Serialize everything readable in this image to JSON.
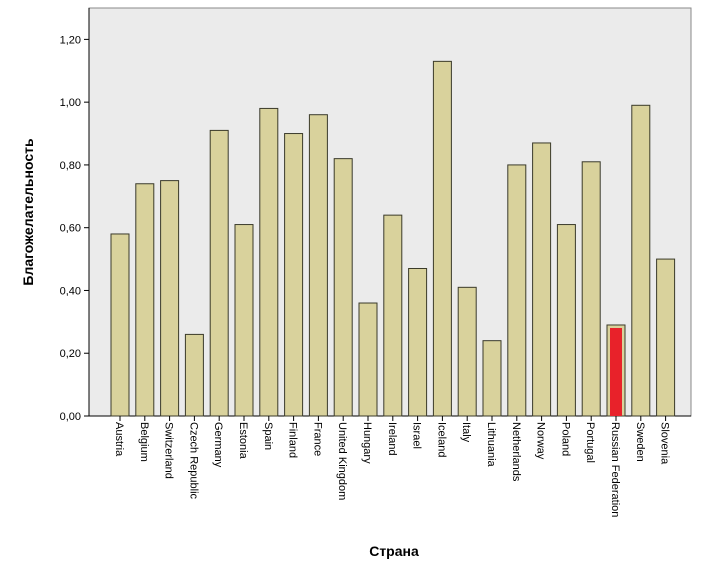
{
  "chart_data": {
    "type": "bar",
    "title": "",
    "xlabel": "Страна",
    "ylabel": "Благожелательность",
    "ylim": [
      0,
      1.3
    ],
    "yticks": [
      "0,00",
      "0,20",
      "0,40",
      "0,60",
      "0,80",
      "1,00",
      "1,20"
    ],
    "categories": [
      "Austria",
      "Belgium",
      "Switzerland",
      "Czech Republic",
      "Germany",
      "Estonia",
      "Spain",
      "Finland",
      "France",
      "United Kingdom",
      "Hungary",
      "Ireland",
      "Israel",
      "Iceland",
      "Italy",
      "Lithuania",
      "Netherlands",
      "Norway",
      "Poland",
      "Portugal",
      "Russian Federation",
      "Sweden",
      "Slovenia"
    ],
    "values": [
      0.58,
      0.74,
      0.75,
      0.26,
      0.91,
      0.61,
      0.98,
      0.9,
      0.96,
      0.82,
      0.36,
      0.64,
      0.47,
      1.13,
      0.41,
      0.24,
      0.8,
      0.87,
      0.61,
      0.81,
      0.29,
      0.99,
      0.5
    ],
    "grid": false,
    "legend": "none",
    "colors": {
      "bar_fill": "#d9d29c",
      "bar_stroke": "#3a3a2a",
      "highlight_fill": "#e8222a",
      "plot_background": "#ebebeb"
    },
    "highlight_category": "Russian Federation"
  }
}
